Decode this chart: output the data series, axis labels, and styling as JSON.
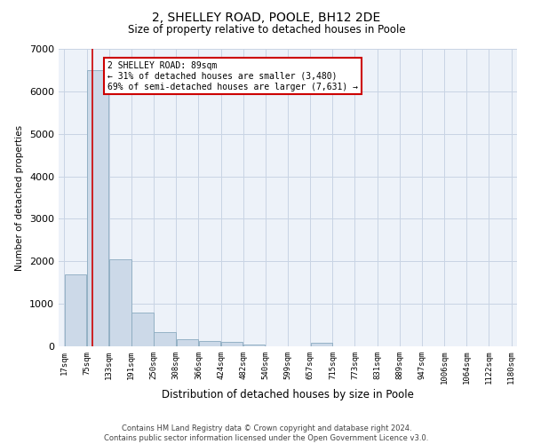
{
  "title_line1": "2, SHELLEY ROAD, POOLE, BH12 2DE",
  "title_line2": "Size of property relative to detached houses in Poole",
  "xlabel": "Distribution of detached houses by size in Poole",
  "ylabel": "Number of detached properties",
  "bin_edges": [
    17,
    75,
    133,
    191,
    250,
    308,
    366,
    424,
    482,
    540,
    599,
    657,
    715,
    773,
    831,
    889,
    947,
    1006,
    1064,
    1122,
    1180
  ],
  "bar_heights": [
    1700,
    6500,
    2050,
    800,
    330,
    175,
    130,
    95,
    50,
    0,
    0,
    90,
    0,
    0,
    0,
    0,
    0,
    0,
    0,
    0
  ],
  "bar_color": "#ccd9e8",
  "bar_edge_color": "#8aaabf",
  "property_size": 89,
  "vline_color": "#cc0000",
  "annotation_text": "2 SHELLEY ROAD: 89sqm\n← 31% of detached houses are smaller (3,480)\n69% of semi-detached houses are larger (7,631) →",
  "annotation_box_color": "#ffffff",
  "annotation_box_edge": "#cc0000",
  "ylim": [
    0,
    7000
  ],
  "yticks": [
    0,
    1000,
    2000,
    3000,
    4000,
    5000,
    6000,
    7000
  ],
  "grid_color": "#c8d4e4",
  "footer_line1": "Contains HM Land Registry data © Crown copyright and database right 2024.",
  "footer_line2": "Contains public sector information licensed under the Open Government Licence v3.0.",
  "bg_color": "#edf2f9"
}
